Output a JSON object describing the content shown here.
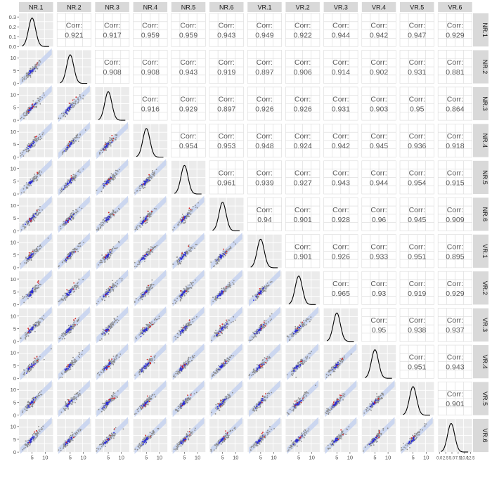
{
  "chart_data": {
    "type": "scatter",
    "variables": [
      "NR.1",
      "NR.2",
      "NR.3",
      "NR.4",
      "NR.5",
      "NR.6",
      "VR.1",
      "VR.2",
      "VR.3",
      "VR.4",
      "VR.5",
      "VR.6"
    ],
    "corr_label": "Corr:",
    "correlations": [
      [
        "",
        "0.921",
        "0.917",
        "0.959",
        "0.959",
        "0.943",
        "0.949",
        "0.922",
        "0.944",
        "0.942",
        "0.947",
        "0.929"
      ],
      [
        "",
        "",
        "0.908",
        "0.908",
        "0.943",
        "0.919",
        "0.897",
        "0.906",
        "0.914",
        "0.902",
        "0.931",
        "0.881"
      ],
      [
        "",
        "",
        "",
        "0.916",
        "0.929",
        "0.897",
        "0.926",
        "0.926",
        "0.931",
        "0.903",
        "0.95",
        "0.864"
      ],
      [
        "",
        "",
        "",
        "",
        "0.954",
        "0.953",
        "0.948",
        "0.924",
        "0.942",
        "0.945",
        "0.936",
        "0.918"
      ],
      [
        "",
        "",
        "",
        "",
        "",
        "0.961",
        "0.939",
        "0.927",
        "0.943",
        "0.944",
        "0.954",
        "0.915"
      ],
      [
        "",
        "",
        "",
        "",
        "",
        "",
        "0.94",
        "0.901",
        "0.928",
        "0.96",
        "0.945",
        "0.909"
      ],
      [
        "",
        "",
        "",
        "",
        "",
        "",
        "",
        "0.901",
        "0.926",
        "0.933",
        "0.951",
        "0.895"
      ],
      [
        "",
        "",
        "",
        "",
        "",
        "",
        "",
        "",
        "0.965",
        "0.93",
        "0.919",
        "0.929"
      ],
      [
        "",
        "",
        "",
        "",
        "",
        "",
        "",
        "",
        "",
        "0.95",
        "0.938",
        "0.937"
      ],
      [
        "",
        "",
        "",
        "",
        "",
        "",
        "",
        "",
        "",
        "",
        "0.951",
        "0.943"
      ],
      [
        "",
        "",
        "",
        "",
        "",
        "",
        "",
        "",
        "",
        "",
        "",
        "0.901"
      ],
      [
        "",
        "",
        "",
        "",
        "",
        "",
        "",
        "",
        "",
        "",
        "",
        ""
      ]
    ],
    "y_ticks_scatter": [
      0,
      5,
      10
    ],
    "y_ticks_density": [
      "0.0",
      "0.1",
      "0.2",
      "0.3"
    ],
    "x_ticks": [
      "5",
      "10"
    ],
    "x_ticks_last": [
      "0.0",
      "2.5",
      "5.0",
      "7.5",
      "10.0",
      "12.5"
    ],
    "x_range": [
      0,
      13
    ],
    "y_range": [
      0,
      13
    ],
    "density_ylim": [
      0,
      0.33
    ],
    "density_peak": 0.29,
    "density_mean": 5,
    "density_sd": 1.35,
    "colors": {
      "panel_bg": "#ebebeb",
      "strip_bg": "#d9d9d9",
      "points": "#8c8c8c",
      "highlight_blue": "#2b2bd6",
      "highlight_red": "#d42020",
      "band": "#c5d2f0",
      "density_line": "#000000",
      "corr_text": "#595959"
    }
  }
}
